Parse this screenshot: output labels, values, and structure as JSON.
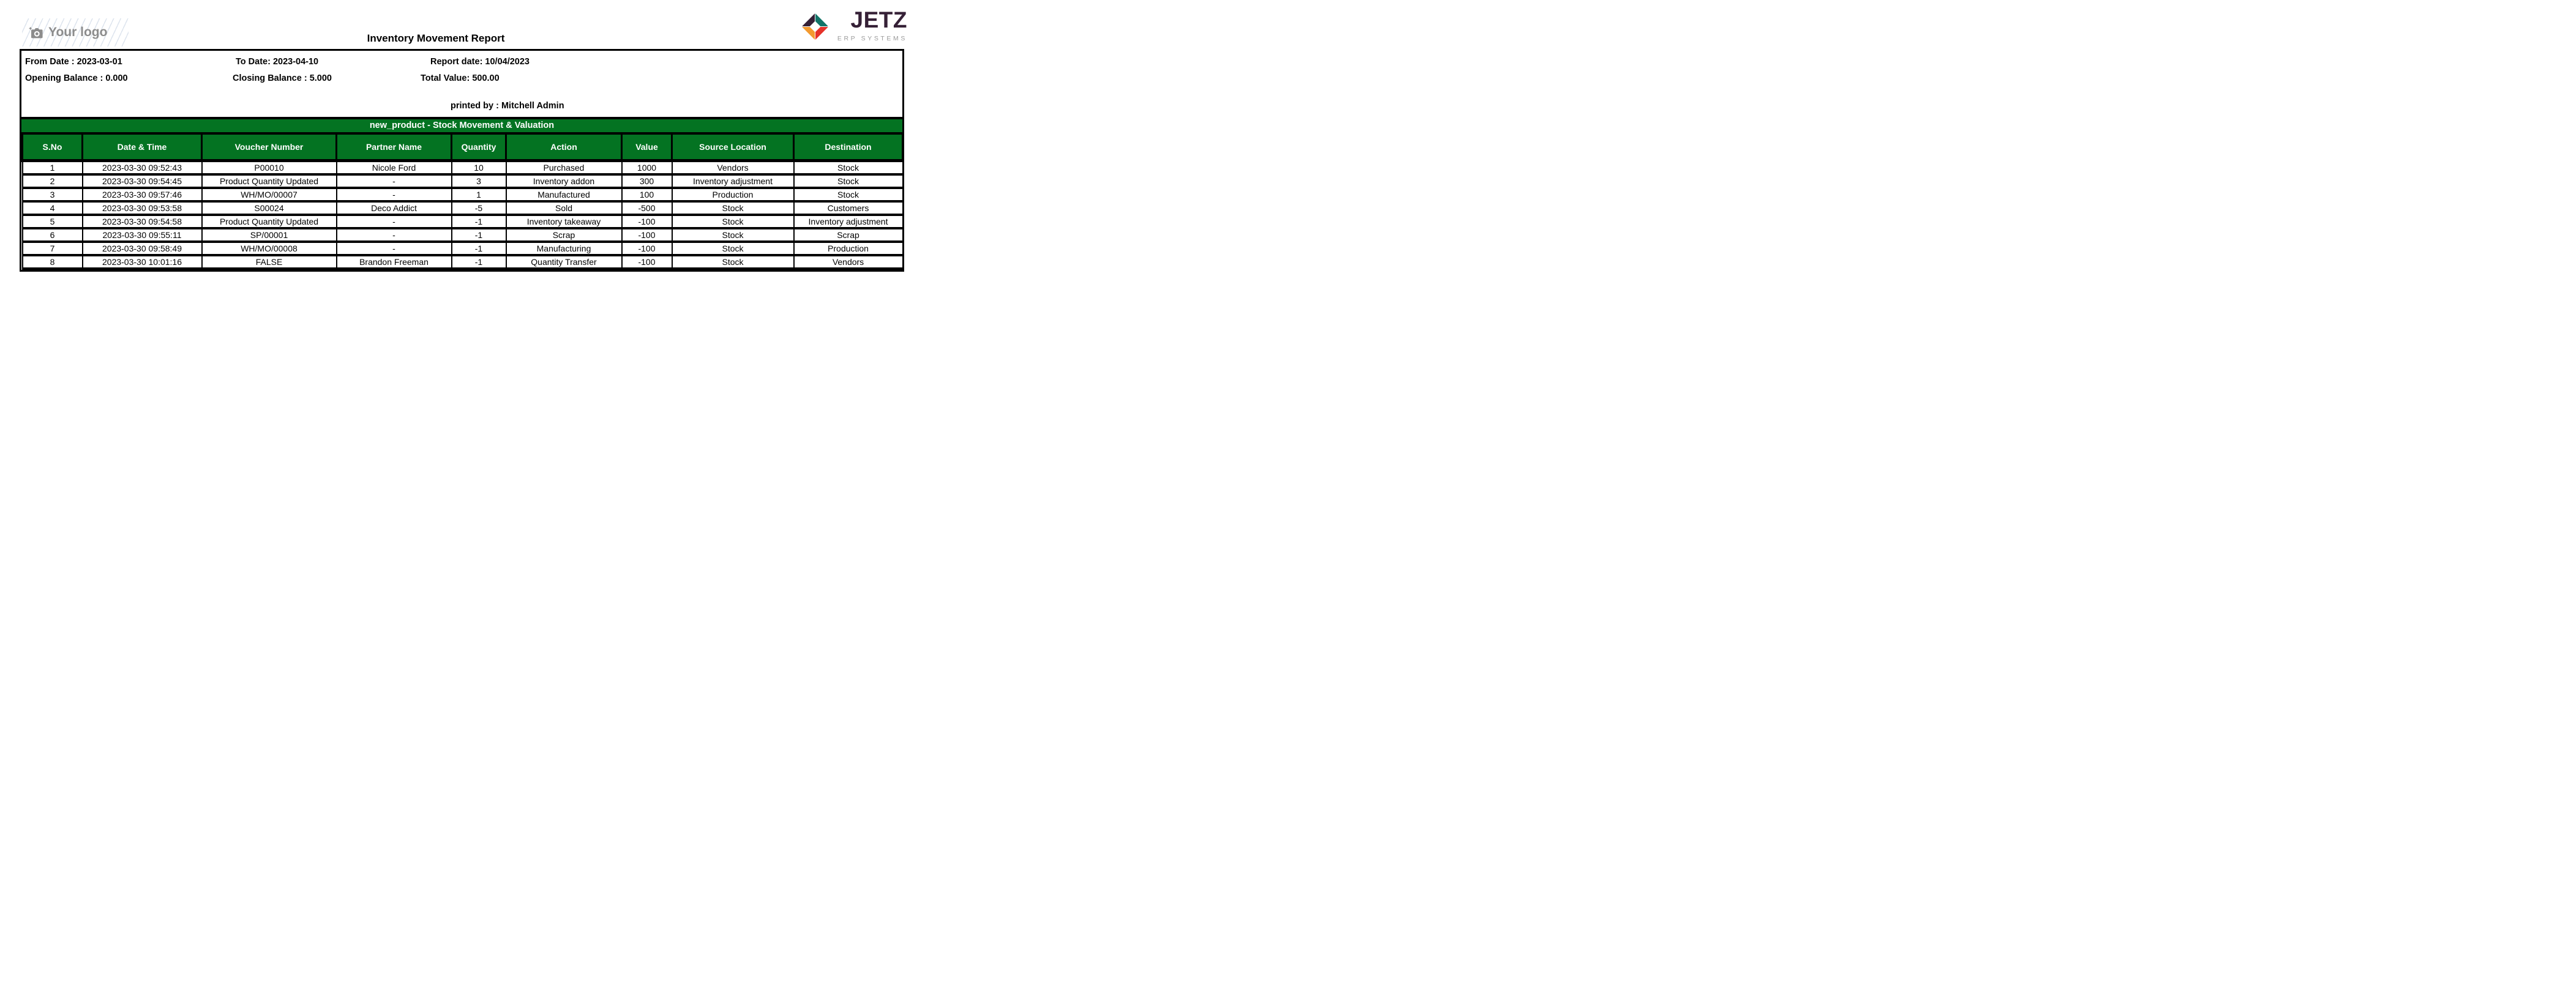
{
  "logo_placeholder": {
    "text": "Your logo",
    "gray": "#8c8c8c"
  },
  "brand": {
    "name": "JETZ",
    "tagline": "ERP SYSTEMS",
    "colors": {
      "dark": "#352036",
      "teal": "#127468",
      "red": "#e63229",
      "orange": "#f39a2f",
      "tagline_gray": "#9b9b9b"
    }
  },
  "report": {
    "title": "Inventory Movement Report",
    "accent_green": "#047322",
    "info": {
      "from_date": "From Date : 2023-03-01",
      "to_date": "To Date: 2023-04-10",
      "report_date": "Report date: 10/04/2023",
      "opening_balance": "Opening Balance : 0.000",
      "closing_balance": "Closing Balance : 5.000",
      "total_value": "Total Value: 500.00",
      "printed_by": "printed by : Mitchell Admin"
    },
    "section_title": "new_product - Stock Movement & Valuation",
    "table": {
      "columns": [
        "S.No",
        "Date & Time",
        "Voucher Number",
        "Partner Name",
        "Quantity",
        "Action",
        "Value",
        "Source Location",
        "Destination"
      ],
      "rows": [
        [
          "1",
          "2023-03-30 09:52:43",
          "P00010",
          "Nicole Ford",
          "10",
          "Purchased",
          "1000",
          "Vendors",
          "Stock"
        ],
        [
          "2",
          "2023-03-30 09:54:45",
          "Product Quantity Updated",
          "-",
          "3",
          "Inventory addon",
          "300",
          "Inventory adjustment",
          "Stock"
        ],
        [
          "3",
          "2023-03-30 09:57:46",
          "WH/MO/00007",
          "-",
          "1",
          "Manufactured",
          "100",
          "Production",
          "Stock"
        ],
        [
          "4",
          "2023-03-30 09:53:58",
          "S00024",
          "Deco Addict",
          "-5",
          "Sold",
          "-500",
          "Stock",
          "Customers"
        ],
        [
          "5",
          "2023-03-30 09:54:58",
          "Product Quantity Updated",
          "-",
          "-1",
          "Inventory takeaway",
          "-100",
          "Stock",
          "Inventory adjustment"
        ],
        [
          "6",
          "2023-03-30 09:55:11",
          "SP/00001",
          "-",
          "-1",
          "Scrap",
          "-100",
          "Stock",
          "Scrap"
        ],
        [
          "7",
          "2023-03-30 09:58:49",
          "WH/MO/00008",
          "-",
          "-1",
          "Manufacturing",
          "-100",
          "Stock",
          "Production"
        ],
        [
          "8",
          "2023-03-30 10:01:16",
          "FALSE",
          "Brandon Freeman",
          "-1",
          "Quantity Transfer",
          "-100",
          "Stock",
          "Vendors"
        ]
      ]
    }
  }
}
